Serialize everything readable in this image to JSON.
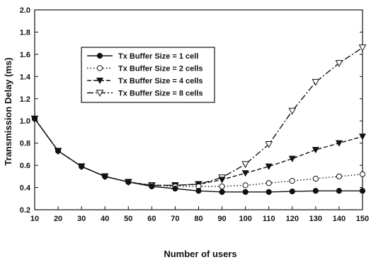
{
  "chart_data": {
    "type": "line",
    "title": "",
    "xlabel": "Number of users",
    "ylabel": "Transmission Delay (ms)",
    "x": [
      10,
      20,
      30,
      40,
      50,
      60,
      70,
      80,
      90,
      100,
      110,
      120,
      130,
      140,
      150
    ],
    "xlim": [
      10,
      150
    ],
    "ylim": [
      0.2,
      2.0
    ],
    "x_ticks": [
      "10",
      "20",
      "30",
      "40",
      "50",
      "60",
      "70",
      "80",
      "90",
      "100",
      "110",
      "120",
      "130",
      "140",
      "150"
    ],
    "y_ticks": [
      "0.2",
      "0.4",
      "0.6",
      "0.8",
      "1.0",
      "1.2",
      "1.4",
      "1.6",
      "1.8",
      "2.0"
    ],
    "grid": false,
    "legend_position": "upper-left inside plot",
    "series": [
      {
        "name": "Tx Buffer Size = 1 cell",
        "marker": "filled-circle",
        "line_style": "solid",
        "values": [
          1.02,
          0.73,
          0.59,
          0.5,
          0.45,
          0.41,
          0.39,
          0.37,
          0.36,
          0.36,
          0.36,
          0.365,
          0.37,
          0.37,
          0.37
        ]
      },
      {
        "name": "Tx Buffer Size = 2 cells",
        "marker": "open-circle",
        "line_style": "dotted",
        "values": [
          1.02,
          0.73,
          0.59,
          0.5,
          0.45,
          0.42,
          0.41,
          0.41,
          0.41,
          0.42,
          0.44,
          0.46,
          0.48,
          0.5,
          0.52
        ]
      },
      {
        "name": "Tx Buffer Size = 4 cells",
        "marker": "filled-triangle-down",
        "line_style": "dashed",
        "values": [
          1.02,
          0.73,
          0.59,
          0.5,
          0.45,
          0.42,
          0.42,
          0.43,
          0.47,
          0.53,
          0.59,
          0.66,
          0.74,
          0.8,
          0.86
        ]
      },
      {
        "name": "Tx Buffer Size = 8 cells",
        "marker": "open-triangle-down",
        "line_style": "dash-dot",
        "values": [
          1.02,
          0.73,
          0.59,
          0.5,
          0.45,
          0.42,
          0.42,
          0.43,
          0.49,
          0.61,
          0.79,
          1.09,
          1.35,
          1.52,
          1.66
        ]
      }
    ]
  },
  "colors": {
    "axis": "#111111",
    "line": "#111111",
    "background": "#ffffff"
  }
}
